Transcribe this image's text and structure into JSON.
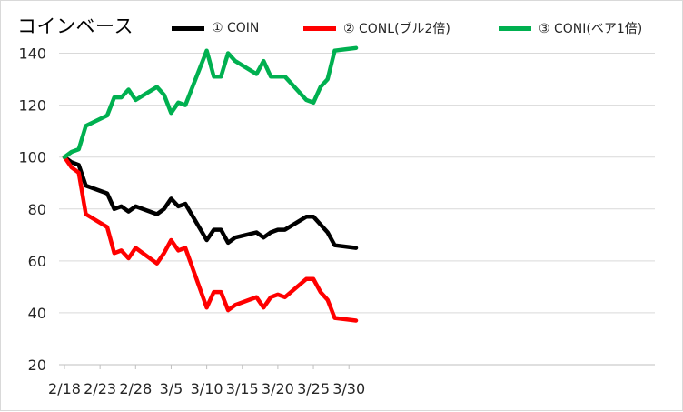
{
  "title": "コインベース",
  "chart_data": {
    "type": "line",
    "title": "コインベース",
    "xlabel": "",
    "ylabel": "",
    "ylim": [
      20,
      150
    ],
    "yticks": [
      20,
      40,
      60,
      80,
      100,
      120,
      140
    ],
    "grid": "horizontal",
    "legend_position": "top",
    "x_tick_labels": [
      "2/18",
      "2/23",
      "2/28",
      "3/5",
      "3/10",
      "3/15",
      "3/20",
      "3/25",
      "3/30"
    ],
    "x_tick_dates": [
      "2/18",
      "2/23",
      "2/28",
      "3/5",
      "3/10",
      "3/15",
      "3/20",
      "3/25",
      "3/30"
    ],
    "x": [
      "2/18",
      "2/19",
      "2/20",
      "2/21",
      "2/24",
      "2/25",
      "2/26",
      "2/27",
      "2/28",
      "3/3",
      "3/4",
      "3/5",
      "3/6",
      "3/7",
      "3/10",
      "3/11",
      "3/12",
      "3/13",
      "3/14",
      "3/17",
      "3/18",
      "3/19",
      "3/20",
      "3/21",
      "3/24",
      "3/25",
      "3/26",
      "3/27",
      "3/28",
      "3/31"
    ],
    "series": [
      {
        "name": "① COIN",
        "color": "#000000",
        "values": [
          100,
          98,
          97,
          89,
          86,
          80,
          81,
          79,
          81,
          78,
          80,
          84,
          81,
          82,
          68,
          72,
          72,
          67,
          69,
          71,
          69,
          71,
          72,
          72,
          77,
          77,
          74,
          71,
          66,
          65
        ]
      },
      {
        "name": "② CONL(ブル2倍)",
        "color": "#ff0000",
        "values": [
          100,
          96,
          94,
          78,
          73,
          63,
          64,
          61,
          65,
          59,
          63,
          68,
          64,
          65,
          42,
          48,
          48,
          41,
          43,
          46,
          42,
          46,
          47,
          46,
          53,
          53,
          48,
          45,
          38,
          37
        ]
      },
      {
        "name": "③ CONI(ベア1倍)",
        "color": "#00b050",
        "values": [
          100,
          102,
          103,
          112,
          116,
          123,
          123,
          126,
          122,
          127,
          124,
          117,
          121,
          120,
          141,
          131,
          131,
          140,
          137,
          132,
          137,
          131,
          131,
          131,
          122,
          121,
          127,
          130,
          141,
          142
        ]
      }
    ]
  }
}
